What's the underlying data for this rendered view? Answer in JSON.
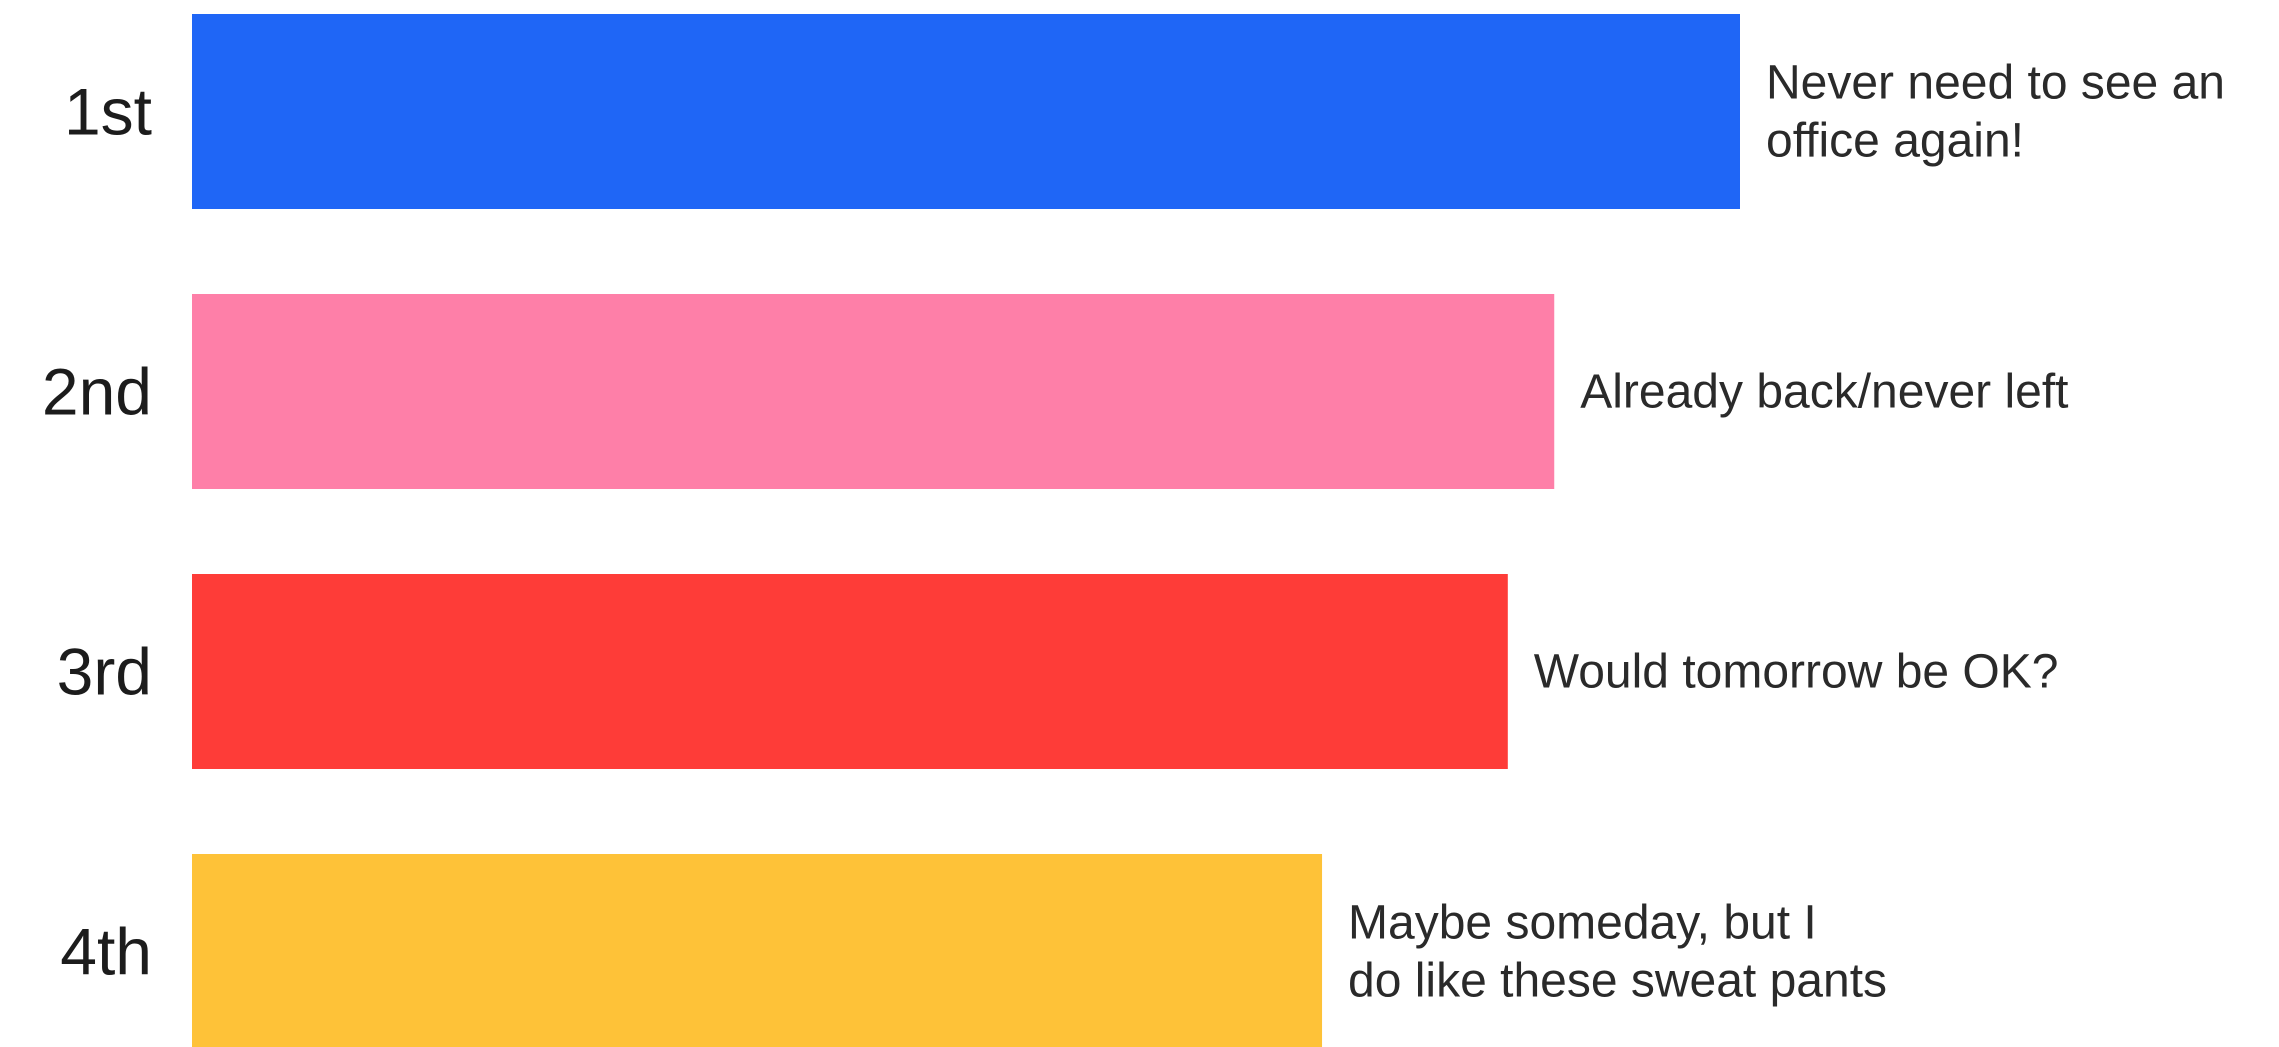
{
  "chart_data": {
    "type": "bar",
    "orientation": "horizontal",
    "categories": [
      "1st",
      "2nd",
      "3rd",
      "4th"
    ],
    "values": [
      100,
      88,
      85,
      73
    ],
    "value_scale": "percent of top bar",
    "labels": [
      [
        "Never need to see an",
        "office again!"
      ],
      [
        "Already back/never left"
      ],
      [
        "Would tomorrow be OK?"
      ],
      [
        "Maybe someday, but I",
        "do like these sweat pants"
      ]
    ],
    "colors": [
      "#1f66f6",
      "#fe7fa8",
      "#fe3c38",
      "#fec238"
    ],
    "title": "",
    "xlabel": "",
    "ylabel": "",
    "grid": false,
    "legend": "none"
  }
}
